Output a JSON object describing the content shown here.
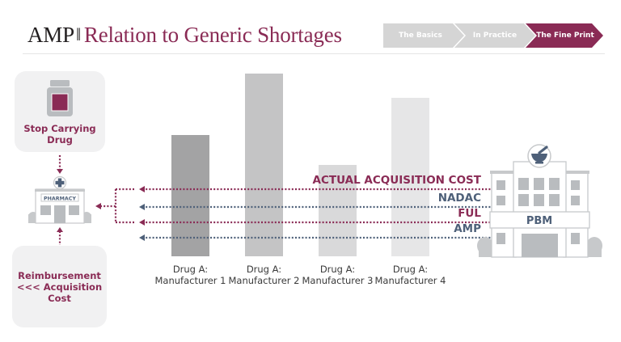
{
  "header": {
    "title_prefix": "AMP",
    "title_separator": "‖",
    "title_main": "Relation to Generic Shortages"
  },
  "steps": [
    {
      "label": "The Basics",
      "active": false
    },
    {
      "label": "In Practice",
      "active": false
    },
    {
      "label": "The Fine Print",
      "active": true
    }
  ],
  "colors": {
    "accent": "#8a2b55",
    "slate": "#4e6079",
    "step_inactive": "#d5d5d5",
    "box_bg": "#f1f1f2",
    "icon_gray": "#b9bcbf"
  },
  "left_panel": {
    "top_box": {
      "icon": "pill-bottle-icon",
      "label_line1": "Stop Carrying",
      "label_line2": "Drug"
    },
    "pharmacy": {
      "icon": "pharmacy-building-icon",
      "sign": "PHARMACY"
    },
    "bottom_box": {
      "label_line1": "Reimbursement",
      "label_line2": "<<< Acquisition",
      "label_line3": "Cost"
    }
  },
  "pbm": {
    "icon": "pbm-building-icon",
    "sign": "PBM",
    "emblem": "mortar-pestle-icon"
  },
  "chart_data": {
    "type": "bar",
    "title": "",
    "xlabel": "",
    "ylabel": "",
    "grid": false,
    "note": "Relative drug price by manufacturer (unitless; estimated relative heights, lowest bar = 1.0 scale reference)",
    "categories": [
      [
        "Drug A:",
        "Manufacturer 1"
      ],
      [
        "Drug A:",
        "Manufacturer 2"
      ],
      [
        "Drug A:",
        "Manufacturer 3"
      ],
      [
        "Drug A:",
        "Manufacturer 4"
      ]
    ],
    "values": [
      150,
      226,
      113,
      196
    ],
    "bar_colors": [
      "#a3a3a4",
      "#c4c4c5",
      "#d9d9da",
      "#e6e6e7"
    ],
    "ylim": [
      0,
      226
    ],
    "reference_lines": [
      {
        "label": "ACTUAL ACQUISITION COST",
        "value": 83,
        "color": "#8a2b55"
      },
      {
        "label": "NADAC",
        "value": 61,
        "color": "#4e6079"
      },
      {
        "label": "FUL",
        "value": 42,
        "color": "#8a2b55"
      },
      {
        "label": "AMP",
        "value": 23,
        "color": "#4e6079"
      }
    ]
  }
}
